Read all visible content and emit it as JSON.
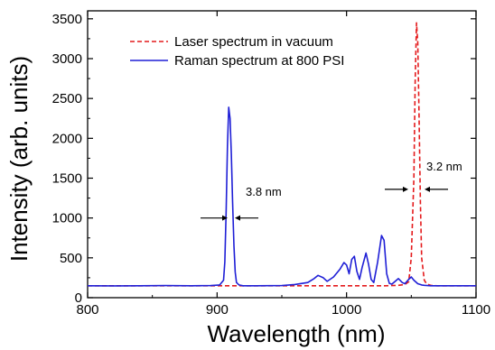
{
  "chart_data": {
    "type": "line",
    "title": "",
    "xlabel": "Wavelength (nm)",
    "ylabel": "Intensity (arb. units)",
    "xlim": [
      800,
      1100
    ],
    "ylim": [
      0,
      3600
    ],
    "xticks": [
      800,
      900,
      1000,
      1100
    ],
    "yticks": [
      0,
      500,
      1000,
      1500,
      2000,
      2500,
      3000,
      3500
    ],
    "grid": false,
    "legend_position": "top-center",
    "series": [
      {
        "name": "Laser spectrum in vacuum",
        "color": "#e41a1c",
        "style": "dashed",
        "x": [
          800,
          850,
          900,
          950,
          1000,
          1030,
          1040,
          1045,
          1048,
          1050,
          1052,
          1053,
          1054,
          1055,
          1056,
          1057,
          1058,
          1060,
          1062,
          1065,
          1070,
          1080,
          1100
        ],
        "y": [
          150,
          150,
          150,
          150,
          150,
          150,
          155,
          165,
          200,
          500,
          1500,
          2700,
          3450,
          3200,
          2300,
          1200,
          500,
          220,
          170,
          155,
          150,
          150,
          150
        ]
      },
      {
        "name": "Raman spectrum at 800 PSI",
        "color": "#1f1fd6",
        "style": "solid",
        "x": [
          800,
          820,
          840,
          860,
          880,
          895,
          902,
          905,
          906,
          907,
          908,
          909,
          910,
          911,
          912,
          913,
          914,
          915,
          917,
          920,
          930,
          950,
          960,
          970,
          975,
          978,
          982,
          985,
          990,
          995,
          998,
          1000,
          1002,
          1004,
          1006,
          1008,
          1010,
          1012,
          1015,
          1017,
          1019,
          1021,
          1024,
          1027,
          1029,
          1031,
          1033,
          1035,
          1038,
          1040,
          1043,
          1045,
          1048,
          1050,
          1052,
          1055,
          1058,
          1060,
          1065,
          1070,
          1080,
          1090,
          1100
        ],
        "y": [
          150,
          148,
          150,
          152,
          150,
          152,
          160,
          220,
          450,
          1100,
          1900,
          2390,
          2250,
          1800,
          1200,
          650,
          320,
          190,
          160,
          150,
          150,
          152,
          165,
          190,
          240,
          280,
          250,
          205,
          260,
          360,
          440,
          410,
          300,
          480,
          520,
          330,
          230,
          380,
          560,
          420,
          230,
          190,
          450,
          780,
          720,
          300,
          180,
          170,
          210,
          240,
          190,
          175,
          230,
          260,
          220,
          175,
          160,
          155,
          150,
          150,
          150,
          150,
          150
        ]
      }
    ],
    "annotations": [
      {
        "text": "3.8 nm",
        "x": 910,
        "y": 1130
      },
      {
        "text": "3.2 nm",
        "x": 1055,
        "y": 1710
      }
    ]
  }
}
